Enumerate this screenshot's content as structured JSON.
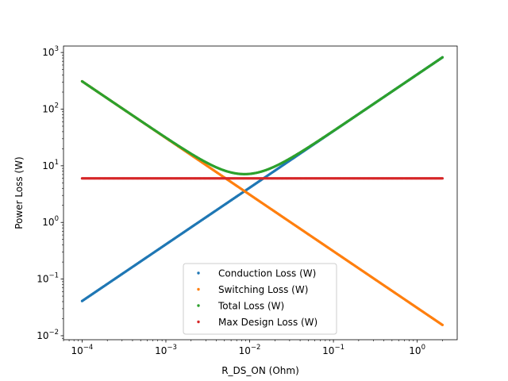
{
  "chart_data": {
    "type": "scatter",
    "title": "",
    "xlabel": "R_DS_ON (Ohm)",
    "ylabel": "Power Loss (W)",
    "xscale": "log",
    "yscale": "log",
    "xlim": [
      6e-05,
      3
    ],
    "ylim": [
      0.0085,
      1300
    ],
    "x_ticks": [
      {
        "value": 0.0001,
        "base": "10",
        "exp": "−4"
      },
      {
        "value": 0.001,
        "base": "10",
        "exp": "−3"
      },
      {
        "value": 0.01,
        "base": "10",
        "exp": "−2"
      },
      {
        "value": 0.1,
        "base": "10",
        "exp": "−1"
      },
      {
        "value": 1,
        "base": "10",
        "exp": "0"
      }
    ],
    "y_ticks": [
      {
        "value": 0.01,
        "base": "10",
        "exp": "−2"
      },
      {
        "value": 0.1,
        "base": "10",
        "exp": "−1"
      },
      {
        "value": 1,
        "base": "10",
        "exp": "0"
      },
      {
        "value": 10,
        "base": "10",
        "exp": "1"
      },
      {
        "value": 100,
        "base": "10",
        "exp": "2"
      },
      {
        "value": 1000,
        "base": "10",
        "exp": "3"
      }
    ],
    "x_range": [
      0.0001,
      2
    ],
    "legend": "lower-center",
    "series": [
      {
        "name": "Conduction Loss (W)",
        "color": "#1f77b4",
        "model": "conduction",
        "k": 410
      },
      {
        "name": "Switching Loss (W)",
        "color": "#ff7f0e",
        "model": "switching",
        "k": 0.031
      },
      {
        "name": "Total Loss (W)",
        "color": "#2ca02c",
        "model": "total"
      },
      {
        "name": "Max Design Loss (W)",
        "color": "#d62728",
        "model": "constant",
        "value": 6
      }
    ]
  }
}
